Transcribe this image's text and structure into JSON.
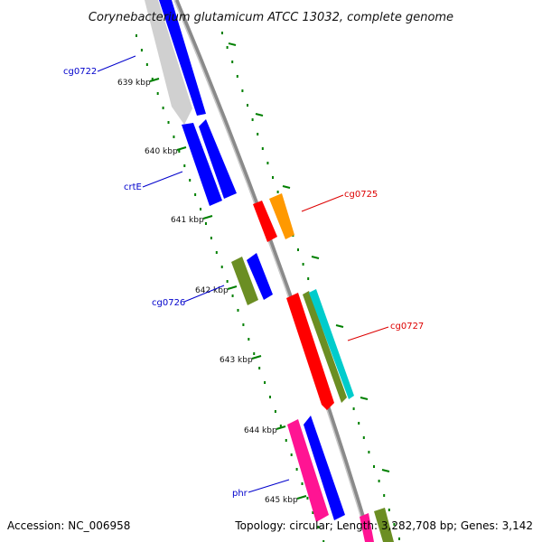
{
  "title": "Corynebacterium glutamicum ATCC 13032, complete genome",
  "footer": {
    "accession": "Accession: NC_006958",
    "summary": "Topology: circular; Length: 3,282,708 bp; Genes: 3,142"
  },
  "colors": {
    "backbone": "#8a8a8a",
    "tick": "#008000",
    "label_blue": "#0000cc",
    "label_red": "#dd0000",
    "gene_blue": "#0000ff",
    "gene_red": "#ff0000",
    "gene_orange": "#ff9900",
    "gene_olive": "#6b8e23",
    "gene_cyan": "#00cccc",
    "gene_pink": "#ff1493",
    "gene_gray": "#bbbbbb"
  },
  "ticks": [
    {
      "label": "639 kbp",
      "kb": 639
    },
    {
      "label": "640 kbp",
      "kb": 640
    },
    {
      "label": "641 kbp",
      "kb": 641
    },
    {
      "label": "642 kbp",
      "kb": 642
    },
    {
      "label": "643 kbp",
      "kb": 643
    },
    {
      "label": "644 kbp",
      "kb": 644
    },
    {
      "label": "645 kbp",
      "kb": 645
    }
  ],
  "gene_labels": [
    {
      "name": "cg0722",
      "color": "blue"
    },
    {
      "name": "crtE",
      "color": "blue"
    },
    {
      "name": "cg0725",
      "color": "red"
    },
    {
      "name": "cg0726",
      "color": "blue"
    },
    {
      "name": "cg0727",
      "color": "red"
    },
    {
      "name": "phr",
      "color": "blue"
    }
  ]
}
